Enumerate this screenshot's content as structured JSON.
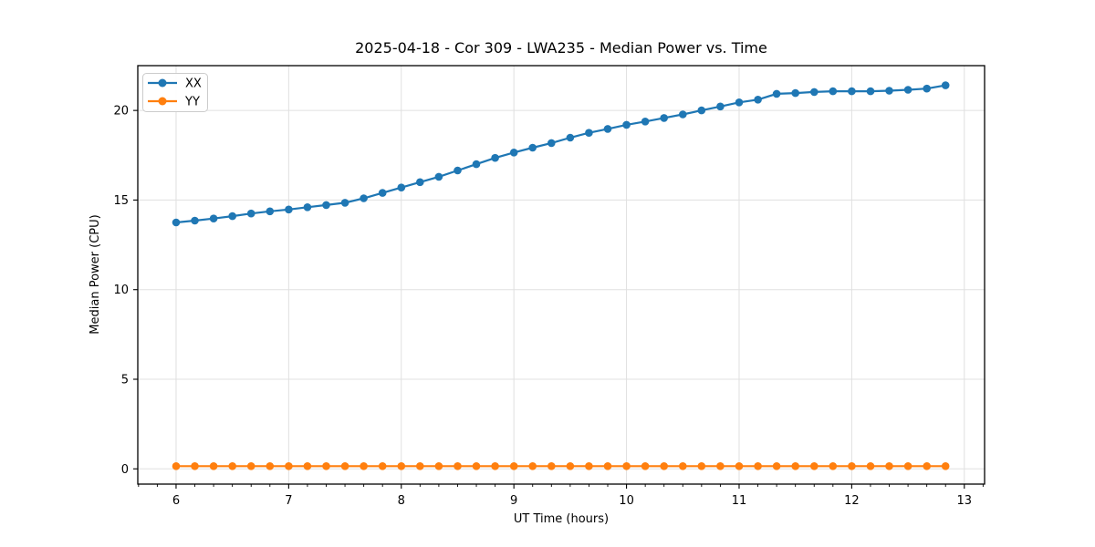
{
  "chart_data": {
    "type": "line",
    "title": "2025-04-18 - Cor 309 - LWA235 - Median Power vs. Time",
    "xlabel": "UT Time (hours)",
    "ylabel": "Median Power (CPU)",
    "xlim": [
      5.66,
      13.18
    ],
    "ylim": [
      -0.85,
      22.5
    ],
    "xticks": [
      6,
      7,
      8,
      9,
      10,
      11,
      12,
      13
    ],
    "yticks": [
      0,
      5,
      10,
      15,
      20
    ],
    "x_minor_tick_interval_hours": 0.16667,
    "grid": "major",
    "legend_position": "upper-left",
    "x": [
      6.0,
      6.1667,
      6.3333,
      6.5,
      6.6667,
      6.8333,
      7.0,
      7.1667,
      7.3333,
      7.5,
      7.6667,
      7.8333,
      8.0,
      8.1667,
      8.3333,
      8.5,
      8.6667,
      8.8333,
      9.0,
      9.1667,
      9.3333,
      9.5,
      9.6667,
      9.8333,
      10.0,
      10.1667,
      10.3333,
      10.5,
      10.6667,
      10.8333,
      11.0,
      11.1667,
      11.3333,
      11.5,
      11.6667,
      11.8333,
      12.0,
      12.1667,
      12.3333,
      12.5,
      12.6667,
      12.8333
    ],
    "series": [
      {
        "name": "XX",
        "color": "#1f77b4",
        "values": [
          13.75,
          13.85,
          13.97,
          14.1,
          14.25,
          14.37,
          14.47,
          14.6,
          14.72,
          14.85,
          15.1,
          15.4,
          15.7,
          16.0,
          16.3,
          16.65,
          17.0,
          17.35,
          17.65,
          17.92,
          18.18,
          18.48,
          18.75,
          18.97,
          19.2,
          19.38,
          19.58,
          19.78,
          20.0,
          20.22,
          20.45,
          20.6,
          20.93,
          20.97,
          21.03,
          21.07,
          21.07,
          21.07,
          21.1,
          21.15,
          21.22,
          21.4
        ]
      },
      {
        "name": "YY",
        "color": "#ff7f0e",
        "values": [
          0.15,
          0.15,
          0.15,
          0.15,
          0.15,
          0.15,
          0.15,
          0.15,
          0.15,
          0.15,
          0.15,
          0.15,
          0.15,
          0.15,
          0.15,
          0.15,
          0.15,
          0.15,
          0.15,
          0.15,
          0.15,
          0.15,
          0.15,
          0.15,
          0.15,
          0.15,
          0.15,
          0.15,
          0.15,
          0.15,
          0.15,
          0.15,
          0.15,
          0.15,
          0.15,
          0.15,
          0.15,
          0.15,
          0.15,
          0.15,
          0.15,
          0.15
        ]
      }
    ]
  },
  "style": {
    "grid_color": "#e0e0e0",
    "spine_color": "#000000",
    "legend_border_color": "#cccccc",
    "legend_background": "#ffffff"
  }
}
